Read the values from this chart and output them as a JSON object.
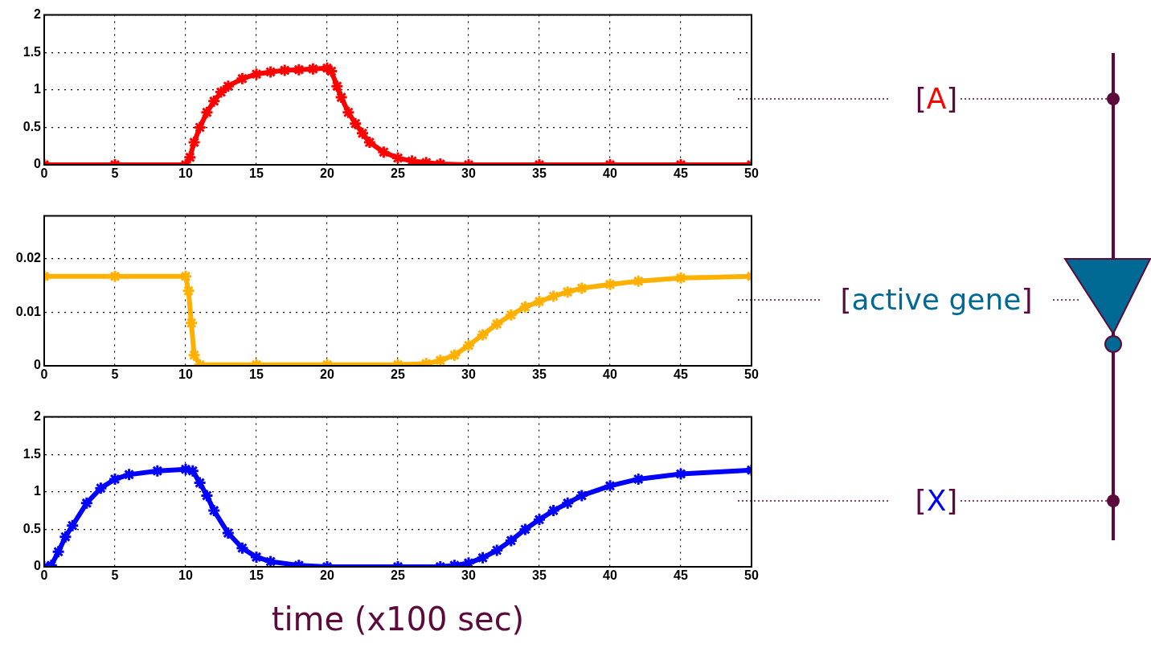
{
  "chart_data": [
    {
      "type": "line",
      "marker": "cross",
      "line_style": "solid",
      "grid": true,
      "color": "#ff0000",
      "annotations": [
        "[A]"
      ],
      "x": [
        0,
        5,
        10,
        10.3,
        10.6,
        11,
        11.5,
        12,
        12.5,
        13,
        14,
        15,
        16,
        17,
        18,
        19,
        20,
        20.3,
        20.7,
        21,
        21.5,
        22,
        22.5,
        23,
        24,
        25,
        26,
        27,
        28,
        30,
        35,
        40,
        45,
        50
      ],
      "values": [
        0,
        0,
        0,
        0.1,
        0.3,
        0.5,
        0.7,
        0.85,
        0.97,
        1.05,
        1.15,
        1.21,
        1.24,
        1.26,
        1.27,
        1.28,
        1.29,
        1.25,
        1.05,
        0.9,
        0.7,
        0.55,
        0.42,
        0.3,
        0.17,
        0.09,
        0.05,
        0.03,
        0.01,
        0,
        0,
        0,
        0,
        0
      ],
      "xlim": [
        0,
        50
      ],
      "xticks": [
        0,
        5,
        10,
        15,
        20,
        25,
        30,
        35,
        40,
        45,
        50
      ],
      "ylim": [
        0,
        2
      ],
      "yticks": [
        0,
        0.5,
        1,
        1.5,
        2
      ]
    },
    {
      "type": "line",
      "marker": "cross",
      "line_style": "solid",
      "grid": true,
      "color": "#ffb000",
      "annotations": [
        "[active gene]"
      ],
      "x": [
        0,
        5,
        10,
        10.2,
        10.4,
        10.6,
        11,
        15,
        20,
        25,
        27,
        28,
        29,
        30,
        31,
        32,
        33,
        34,
        35,
        36,
        37,
        38,
        40,
        42,
        45,
        50
      ],
      "values": [
        0.0167,
        0.0167,
        0.0167,
        0.014,
        0.008,
        0.002,
        0.0002,
        0.0002,
        0.0002,
        0.0002,
        0.0004,
        0.001,
        0.002,
        0.0038,
        0.0058,
        0.0078,
        0.0095,
        0.011,
        0.012,
        0.013,
        0.0138,
        0.0145,
        0.0152,
        0.0158,
        0.0164,
        0.0167
      ],
      "xlim": [
        0,
        50
      ],
      "xticks": [
        0,
        5,
        10,
        15,
        20,
        25,
        30,
        35,
        40,
        45,
        50
      ],
      "ylim": [
        0,
        0.028
      ],
      "yticks": [
        0,
        0.01,
        0.02
      ]
    },
    {
      "type": "line",
      "marker": "cross",
      "line_style": "solid",
      "grid": true,
      "color": "#0000ff",
      "annotations": [
        "[X]"
      ],
      "xlabel": "time (x100 sec)",
      "x": [
        0,
        0.5,
        1,
        1.5,
        2,
        3,
        4,
        5,
        6,
        8,
        10,
        10.5,
        11,
        11.5,
        12,
        13,
        14,
        15,
        16,
        18,
        20,
        25,
        28,
        29,
        30,
        31,
        32,
        33,
        34,
        35,
        36,
        37,
        38,
        40,
        42,
        45,
        50
      ],
      "values": [
        0,
        0.02,
        0.2,
        0.4,
        0.55,
        0.85,
        1.05,
        1.17,
        1.23,
        1.28,
        1.3,
        1.28,
        1.12,
        0.95,
        0.75,
        0.45,
        0.25,
        0.13,
        0.07,
        0.02,
        0,
        0,
        0,
        0.02,
        0.05,
        0.12,
        0.22,
        0.35,
        0.5,
        0.63,
        0.75,
        0.85,
        0.95,
        1.08,
        1.17,
        1.24,
        1.29
      ],
      "xlim": [
        0,
        50
      ],
      "xticks": [
        0,
        5,
        10,
        15,
        20,
        25,
        30,
        35,
        40,
        45,
        50
      ],
      "ylim": [
        0,
        2
      ],
      "yticks": [
        0,
        0.5,
        1,
        1.5,
        2
      ]
    }
  ]
}
